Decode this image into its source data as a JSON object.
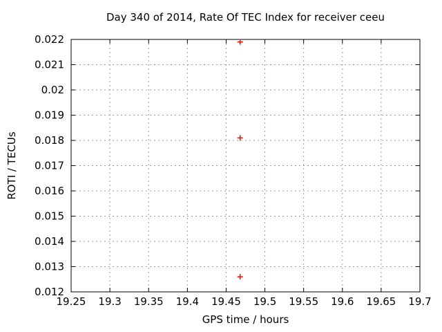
{
  "page": {
    "background": "#ffffff"
  },
  "chart_data": {
    "type": "scatter",
    "title": "Day 340 of 2014, Rate Of TEC Index for receiver ceeu",
    "xlabel": "GPS time / hours",
    "ylabel": "ROTI / TECUs",
    "xlim": [
      19.25,
      19.7
    ],
    "ylim": [
      0.012,
      0.022
    ],
    "xtick_values": [
      19.25,
      19.3,
      19.35,
      19.4,
      19.45,
      19.5,
      19.55,
      19.6,
      19.65,
      19.7
    ],
    "xtick_labels": [
      "19.25",
      "19.3",
      "19.35",
      "19.4",
      "19.45",
      "19.5",
      "19.55",
      "19.6",
      "19.65",
      "19.7"
    ],
    "ytick_values": [
      0.012,
      0.013,
      0.014,
      0.015,
      0.016,
      0.017,
      0.018,
      0.019,
      0.02,
      0.021,
      0.022
    ],
    "ytick_labels": [
      "0.012",
      "0.013",
      "0.014",
      "0.015",
      "0.016",
      "0.017",
      "0.018",
      "0.019",
      "0.02",
      "0.021",
      "0.022"
    ],
    "grid": true,
    "legend": "none",
    "series": [
      {
        "name": "ROTI",
        "marker": "plus",
        "color": "#ff0000",
        "points": [
          {
            "x": 19.468,
            "y": 0.0219
          },
          {
            "x": 19.468,
            "y": 0.0181
          },
          {
            "x": 19.468,
            "y": 0.0126
          }
        ]
      }
    ],
    "colors": {
      "border": "#000000",
      "grid": "#9a9a9a",
      "text": "#000000",
      "marker": "#ff0000"
    }
  }
}
